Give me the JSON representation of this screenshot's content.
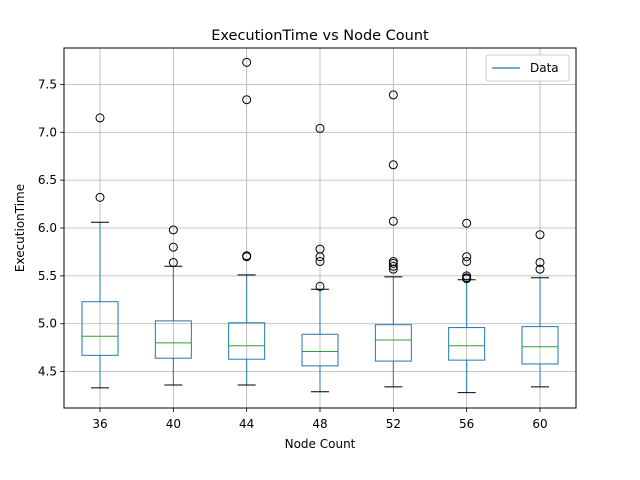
{
  "chart_data": {
    "type": "box",
    "title": "ExecutionTime vs Node Count",
    "xlabel": "Node Count",
    "ylabel": "ExecutionTime",
    "ylim": [
      4.12,
      7.88
    ],
    "yticks": [
      4.5,
      5.0,
      5.5,
      6.0,
      6.5,
      7.0,
      7.5
    ],
    "ytick_labels": [
      "4.5",
      "5.0",
      "5.5",
      "6.0",
      "6.5",
      "7.0",
      "7.5"
    ],
    "grid": true,
    "legend": {
      "position": "top-right",
      "entries": [
        "Data"
      ]
    },
    "colors": {
      "box": "#1f77b4",
      "median": "#2ca02c",
      "whisker": "#000000",
      "grid": "#b0b0b0"
    },
    "categories": [
      "36",
      "40",
      "44",
      "48",
      "52",
      "56",
      "60"
    ],
    "boxes": [
      {
        "category": "36",
        "whislo": 4.33,
        "q1": 4.67,
        "med": 4.87,
        "q3": 5.23,
        "whishi": 6.06,
        "fliers": [
          6.32,
          7.15
        ]
      },
      {
        "category": "40",
        "whislo": 4.36,
        "q1": 4.64,
        "med": 4.8,
        "q3": 5.03,
        "whishi": 5.6,
        "fliers": [
          5.64,
          5.8,
          5.98
        ]
      },
      {
        "category": "44",
        "whislo": 4.36,
        "q1": 4.63,
        "med": 4.77,
        "q3": 5.01,
        "whishi": 5.51,
        "fliers": [
          5.7,
          5.71,
          7.34,
          7.73
        ]
      },
      {
        "category": "48",
        "whislo": 4.29,
        "q1": 4.56,
        "med": 4.71,
        "q3": 4.89,
        "whishi": 5.36,
        "fliers": [
          5.39,
          5.65,
          5.7,
          5.78,
          7.04
        ]
      },
      {
        "category": "52",
        "whislo": 4.34,
        "q1": 4.61,
        "med": 4.83,
        "q3": 4.99,
        "whishi": 5.49,
        "fliers": [
          5.57,
          5.6,
          5.63,
          5.65,
          6.07,
          6.66,
          7.39
        ]
      },
      {
        "category": "56",
        "whislo": 4.28,
        "q1": 4.62,
        "med": 4.77,
        "q3": 4.96,
        "whishi": 5.46,
        "fliers": [
          5.47,
          5.48,
          5.5,
          5.65,
          5.7,
          6.05
        ]
      },
      {
        "category": "60",
        "whislo": 4.34,
        "q1": 4.58,
        "med": 4.76,
        "q3": 4.97,
        "whishi": 5.48,
        "fliers": [
          5.57,
          5.64,
          5.93
        ]
      }
    ]
  }
}
